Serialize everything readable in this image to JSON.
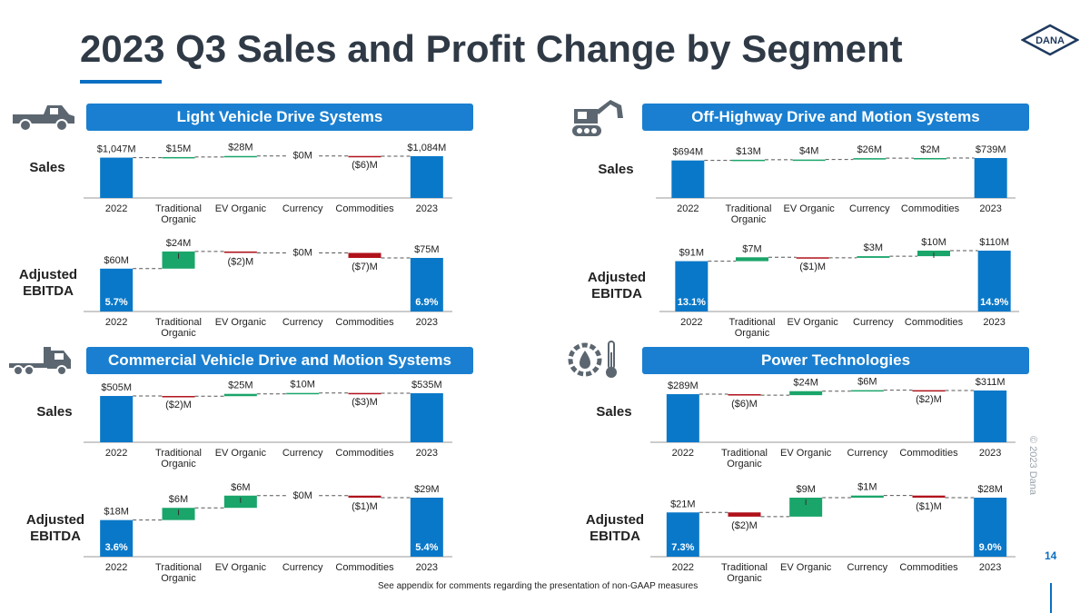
{
  "page": {
    "title": "2023 Q3 Sales and Profit Change by Segment",
    "logo_text": "DANA",
    "copyright": "© 2023 Dana",
    "page_number": "14",
    "footnote": "See appendix for comments regarding the presentation of non-GAAP measures"
  },
  "colors": {
    "accent": "#1a7fd0",
    "bar_blue": "#0a78c8",
    "increase": "#1aa56a",
    "decrease": "#b0121b"
  },
  "segments": [
    {
      "title": "Light Vehicle Drive Systems",
      "icon": "light-vehicle-truck-icon",
      "rows": [
        "Sales",
        "Adjusted\nEBITDA"
      ]
    },
    {
      "title": "Off-Highway Drive and Motion Systems",
      "icon": "excavator-icon",
      "rows": [
        "Sales",
        "Adjusted\nEBITDA"
      ]
    },
    {
      "title": "Commercial Vehicle Drive and Motion Systems",
      "icon": "semi-truck-icon",
      "rows": [
        "Sales",
        "Adjusted\nEBITDA"
      ]
    },
    {
      "title": "Power Technologies",
      "icon": "power-technologies-icon",
      "rows": [
        "Sales",
        "Adjusted\nEBITDA"
      ]
    }
  ],
  "chart_data": [
    {
      "type": "bar",
      "segment": "Light Vehicle Drive Systems",
      "metric": "Sales",
      "categories": [
        "2022",
        "Traditional\nOrganic",
        "EV Organic",
        "Currency",
        "Commodities",
        "2023"
      ],
      "values": [
        1047,
        15,
        28,
        0,
        -6,
        1084
      ],
      "labels": [
        "$1,047M",
        "$15M",
        "$28M",
        "$0M",
        "($6)M",
        "$1,084M"
      ],
      "margins": [
        "",
        ""
      ]
    },
    {
      "type": "bar",
      "segment": "Light Vehicle Drive Systems",
      "metric": "Adjusted EBITDA",
      "categories": [
        "2022",
        "Traditional\nOrganic",
        "EV Organic",
        "Currency",
        "Commodities",
        "2023"
      ],
      "values": [
        60,
        24,
        -2,
        0,
        -7,
        75
      ],
      "labels": [
        "$60M",
        "$24M",
        "($2)M",
        "$0M",
        "($7)M",
        "$75M"
      ],
      "margins": [
        "5.7%",
        "6.9%"
      ]
    },
    {
      "type": "bar",
      "segment": "Off-Highway Drive and Motion Systems",
      "metric": "Sales",
      "categories": [
        "2022",
        "Traditional\nOrganic",
        "EV Organic",
        "Currency",
        "Commodities",
        "2023"
      ],
      "values": [
        694,
        13,
        4,
        26,
        2,
        739
      ],
      "labels": [
        "$694M",
        "$13M",
        "$4M",
        "$26M",
        "$2M",
        "$739M"
      ],
      "margins": [
        "",
        ""
      ]
    },
    {
      "type": "bar",
      "segment": "Off-Highway Drive and Motion Systems",
      "metric": "Adjusted EBITDA",
      "categories": [
        "2022",
        "Traditional\nOrganic",
        "EV Organic",
        "Currency",
        "Commodities",
        "2023"
      ],
      "values": [
        91,
        7,
        -1,
        3,
        10,
        110
      ],
      "labels": [
        "$91M",
        "$7M",
        "($1)M",
        "$3M",
        "$10M",
        "$110M"
      ],
      "margins": [
        "13.1%",
        "14.9%"
      ]
    },
    {
      "type": "bar",
      "segment": "Commercial Vehicle Drive and Motion Systems",
      "metric": "Sales",
      "categories": [
        "2022",
        "Traditional\nOrganic",
        "EV Organic",
        "Currency",
        "Commodities",
        "2023"
      ],
      "values": [
        505,
        -2,
        25,
        10,
        -3,
        535
      ],
      "labels": [
        "$505M",
        "($2)M",
        "$25M",
        "$10M",
        "($3)M",
        "$535M"
      ],
      "margins": [
        "",
        ""
      ]
    },
    {
      "type": "bar",
      "segment": "Commercial Vehicle Drive and Motion Systems",
      "metric": "Adjusted EBITDA",
      "categories": [
        "2022",
        "Traditional\nOrganic",
        "EV Organic",
        "Currency",
        "Commodities",
        "2023"
      ],
      "values": [
        18,
        6,
        6,
        0,
        -1,
        29
      ],
      "labels": [
        "$18M",
        "$6M",
        "$6M",
        "$0M",
        "($1)M",
        "$29M"
      ],
      "margins": [
        "3.6%",
        "5.4%"
      ]
    },
    {
      "type": "bar",
      "segment": "Power Technologies",
      "metric": "Sales",
      "categories": [
        "2022",
        "Traditional\nOrganic",
        "EV Organic",
        "Currency",
        "Commodities",
        "2023"
      ],
      "values": [
        289,
        -6,
        24,
        6,
        -2,
        311
      ],
      "labels": [
        "$289M",
        "($6)M",
        "$24M",
        "$6M",
        "($2)M",
        "$311M"
      ],
      "margins": [
        "",
        ""
      ]
    },
    {
      "type": "bar",
      "segment": "Power Technologies",
      "metric": "Adjusted EBITDA",
      "categories": [
        "2022",
        "Traditional\nOrganic",
        "EV Organic",
        "Currency",
        "Commodities",
        "2023"
      ],
      "values": [
        21,
        -2,
        9,
        1,
        -1,
        28
      ],
      "labels": [
        "$21M",
        "($2)M",
        "$9M",
        "$1M",
        "($1)M",
        "$28M"
      ],
      "margins": [
        "7.3%",
        "9.0%"
      ]
    }
  ]
}
